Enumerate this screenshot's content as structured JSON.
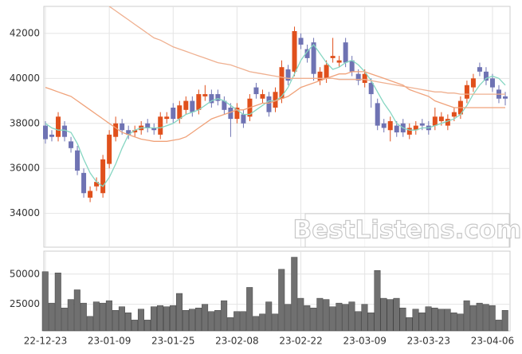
{
  "chart_data": {
    "type": "candlestick",
    "categories": [
      "22-12-23",
      null,
      null,
      null,
      null,
      null,
      null,
      null,
      null,
      null,
      "23-01-09",
      null,
      null,
      null,
      null,
      null,
      null,
      null,
      null,
      null,
      "23-01-25",
      null,
      null,
      null,
      null,
      null,
      null,
      null,
      null,
      null,
      "23-02-08",
      null,
      null,
      null,
      null,
      null,
      null,
      null,
      null,
      null,
      "23-02-22",
      null,
      null,
      null,
      null,
      null,
      null,
      null,
      null,
      null,
      "23-03-09",
      null,
      null,
      null,
      null,
      null,
      null,
      null,
      null,
      null,
      "23-03-23",
      null,
      null,
      null,
      null,
      null,
      null,
      null,
      null,
      null,
      "23-04-06",
      null,
      null
    ],
    "open": [
      37900,
      37500,
      37400,
      37900,
      37200,
      36800,
      35800,
      34700,
      35200,
      34900,
      36200,
      37400,
      38000,
      37700,
      37600,
      37700,
      38000,
      37800,
      37500,
      38200,
      38700,
      38200,
      38600,
      39000,
      38600,
      39200,
      39300,
      39300,
      39000,
      38700,
      38200,
      38400,
      38300,
      39600,
      39100,
      39200,
      38700,
      39100,
      40400,
      40300,
      41800,
      41300,
      41600,
      39900,
      40000,
      40900,
      40700,
      41600,
      40800,
      40200,
      39800,
      39800,
      38900,
      38000,
      37700,
      37900,
      38000,
      37500,
      37700,
      38000,
      37900,
      37900,
      38100,
      37900,
      38300,
      38400,
      39100,
      39600,
      40500,
      40300,
      40000,
      39500,
      39200
    ],
    "high": [
      38100,
      37700,
      38500,
      38100,
      37400,
      37000,
      36000,
      35200,
      35600,
      36600,
      37700,
      38300,
      38200,
      37900,
      37900,
      38100,
      38200,
      38000,
      38500,
      38500,
      38900,
      39000,
      39200,
      39200,
      39500,
      39700,
      39500,
      39500,
      39200,
      38900,
      38900,
      38600,
      39300,
      39800,
      39500,
      39400,
      39600,
      40800,
      40600,
      42300,
      42000,
      41500,
      41800,
      40500,
      40800,
      41800,
      41000,
      41800,
      41000,
      40400,
      40400,
      40000,
      39100,
      38200,
      38300,
      38100,
      38200,
      38000,
      38100,
      38200,
      38100,
      38700,
      38500,
      38400,
      38700,
      39200,
      39900,
      40200,
      40700,
      40500,
      40200,
      39700,
      39400
    ],
    "low": [
      37100,
      37200,
      37200,
      37200,
      36700,
      35700,
      34700,
      34500,
      35000,
      34700,
      36000,
      37200,
      37500,
      37300,
      37400,
      37500,
      37600,
      37500,
      37300,
      38000,
      38000,
      38000,
      38400,
      38300,
      38400,
      39000,
      38700,
      38800,
      38400,
      37400,
      38000,
      37800,
      38100,
      39100,
      38900,
      38300,
      38500,
      38900,
      39700,
      40100,
      41300,
      40700,
      39900,
      39700,
      39800,
      40700,
      40500,
      40500,
      40100,
      39700,
      39600,
      38700,
      37700,
      37600,
      37200,
      37400,
      37400,
      37300,
      37500,
      37700,
      37500,
      37700,
      37900,
      37700,
      38100,
      38200,
      38900,
      39400,
      40100,
      39700,
      39400,
      38900,
      38800
    ],
    "close": [
      37300,
      37400,
      38300,
      37400,
      36900,
      35900,
      34900,
      35000,
      35400,
      36400,
      37500,
      38000,
      37700,
      37500,
      37700,
      37900,
      37800,
      37700,
      38300,
      38300,
      38200,
      38800,
      39000,
      38500,
      39300,
      39300,
      38900,
      39000,
      38600,
      38200,
      38700,
      38000,
      39100,
      39300,
      39300,
      38500,
      39400,
      40500,
      39900,
      42100,
      41500,
      40900,
      40200,
      40300,
      40600,
      41000,
      40800,
      40700,
      40300,
      39900,
      40200,
      39300,
      37900,
      37800,
      38100,
      37600,
      37600,
      37800,
      37900,
      37900,
      37700,
      38300,
      38300,
      38200,
      38500,
      39000,
      39700,
      40000,
      40300,
      39900,
      39600,
      39100,
      39100
    ],
    "up_color": "#e0501c",
    "down_color": "#6f73b3",
    "ylim": [
      32500,
      43200
    ],
    "yticks": [
      34000,
      36000,
      38000,
      40000,
      42000
    ],
    "grid": true,
    "lines": [
      {
        "color": "#86d6c2",
        "values": [
          38000,
          37800,
          37700,
          37700,
          37600,
          37100,
          36400,
          35800,
          35400,
          35200,
          35600,
          36200,
          36900,
          37500,
          37700,
          37800,
          37800,
          37800,
          37800,
          37900,
          38000,
          38200,
          38400,
          38500,
          38600,
          38800,
          39000,
          39100,
          39000,
          38800,
          38600,
          38400,
          38400,
          38600,
          38800,
          39000,
          39000,
          39200,
          39600,
          40200,
          40800,
          41200,
          41500,
          41100,
          40700,
          40400,
          40500,
          40700,
          40800,
          40600,
          40300,
          39900,
          39400,
          38900,
          38500,
          38000,
          37800,
          37700,
          37700,
          37800,
          37800,
          37900,
          38000,
          38100,
          38200,
          38400,
          38800,
          39300,
          39700,
          40000,
          40100,
          40000,
          39700
        ]
      },
      {
        "color": "#f0a27a",
        "values": [
          39600,
          39500,
          39400,
          39300,
          39200,
          39000,
          38800,
          38600,
          38400,
          38200,
          38000,
          37800,
          37600,
          37500,
          37400,
          37300,
          37250,
          37200,
          37200,
          37200,
          37250,
          37300,
          37400,
          37600,
          37800,
          38000,
          38200,
          38300,
          38400,
          38500,
          38600,
          38600,
          38700,
          38800,
          38900,
          38900,
          39000,
          39100,
          39200,
          39400,
          39600,
          39700,
          39800,
          39900,
          40000,
          40100,
          40200,
          40200,
          40300,
          40300,
          40300,
          40200,
          40100,
          40000,
          39900,
          39800,
          39700,
          39500,
          39400,
          39300,
          39200,
          39000,
          38900,
          38800,
          38700,
          38700,
          38700,
          38700,
          38700,
          38700,
          38700,
          38700,
          38700
        ]
      },
      {
        "color": "#efb090",
        "values": [
          null,
          null,
          null,
          null,
          null,
          null,
          null,
          null,
          null,
          null,
          43200,
          43000,
          42800,
          42600,
          42400,
          42200,
          42000,
          41800,
          41700,
          41550,
          41400,
          41300,
          41200,
          41100,
          41000,
          40900,
          40800,
          40700,
          40650,
          40600,
          40500,
          40400,
          40300,
          40250,
          40200,
          40150,
          40100,
          40050,
          40000,
          40000,
          40000,
          40000,
          40000,
          40000,
          40000,
          40000,
          39950,
          39950,
          39950,
          39950,
          39950,
          39900,
          39850,
          39800,
          39750,
          39700,
          39650,
          39600,
          39550,
          39500,
          39450,
          39400,
          39400,
          39350,
          39350,
          39300,
          39300,
          39300,
          39300,
          39300,
          39300,
          39300,
          39300
        ]
      }
    ],
    "volume": {
      "color": "#707070",
      "ylim": [
        3000,
        69000
      ],
      "yticks": [
        25000,
        50000
      ],
      "values": [
        52000,
        26000,
        51000,
        22000,
        29000,
        37000,
        26000,
        15000,
        27000,
        26000,
        28000,
        20000,
        23000,
        18000,
        12000,
        21000,
        12000,
        23000,
        24000,
        23000,
        24000,
        34000,
        20000,
        21000,
        22000,
        25000,
        19000,
        20000,
        28000,
        14000,
        19000,
        19000,
        39000,
        15000,
        17000,
        27000,
        17000,
        54000,
        25000,
        64000,
        30000,
        24000,
        22000,
        30000,
        29000,
        23000,
        26000,
        25000,
        27000,
        19000,
        25000,
        18000,
        53000,
        30000,
        29000,
        30000,
        22000,
        14000,
        21000,
        18000,
        23000,
        22000,
        21000,
        21000,
        18000,
        17000,
        28000,
        24000,
        26000,
        25000,
        24000,
        12000,
        20000
      ]
    },
    "watermark": "BestListens.com"
  }
}
